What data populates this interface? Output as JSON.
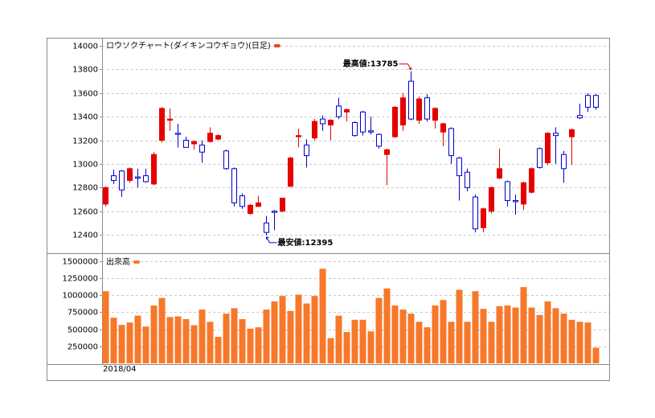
{
  "chart_data": [
    {
      "type": "candlestick",
      "series": [
        {
          "name": "ロウソクチャート(ダイキンコウギョウ)(日足)",
          "color": "#f0441a",
          "up_color": "#0000cc",
          "down_color": "#e60000",
          "open": [
            12800,
            12860,
            12780,
            12960,
            12880,
            12850,
            13080,
            13470,
            13380,
            13250,
            13140,
            13190,
            13100,
            13260,
            13240,
            12960,
            12670,
            12640,
            12650,
            12670,
            12420,
            12590,
            12710,
            13050,
            13240,
            13070,
            13360,
            13340,
            13370,
            13400,
            13460,
            13240,
            13270,
            13270,
            13150,
            13120,
            13480,
            13560,
            13380,
            13550,
            13380,
            13470,
            13340,
            13070,
            12900,
            12800,
            12450,
            12620,
            12800,
            12960,
            12690,
            12680,
            12840,
            12960,
            12970,
            13260,
            13240,
            12960,
            13290,
            13390,
            13480,
            13480
          ],
          "high": [
            12810,
            12950,
            12950,
            12970,
            12960,
            12960,
            13100,
            13480,
            13470,
            13340,
            13230,
            13200,
            13200,
            13310,
            13250,
            13120,
            12970,
            12750,
            12660,
            12730,
            12560,
            12610,
            12710,
            13060,
            13300,
            13210,
            13380,
            13410,
            13380,
            13560,
            13470,
            13360,
            13450,
            13400,
            13260,
            13130,
            13490,
            13600,
            13785,
            13570,
            13590,
            13480,
            13350,
            13310,
            13060,
            12960,
            12740,
            12630,
            12810,
            13130,
            12860,
            12740,
            12850,
            12970,
            13140,
            13270,
            13310,
            13110,
            13300,
            13510,
            13600,
            13590
          ],
          "low": [
            12640,
            12830,
            12720,
            12840,
            12800,
            12840,
            12820,
            13180,
            13280,
            13140,
            13140,
            13120,
            13010,
            13180,
            13200,
            12950,
            12640,
            12620,
            12570,
            12640,
            12395,
            12440,
            12590,
            12810,
            13140,
            12970,
            13200,
            13280,
            13200,
            13380,
            13360,
            13230,
            13240,
            13250,
            13130,
            12820,
            13220,
            13280,
            13370,
            13340,
            13360,
            13300,
            13150,
            13000,
            12690,
            12770,
            12420,
            12420,
            12580,
            12870,
            12640,
            12570,
            12610,
            12750,
            12960,
            12990,
            13000,
            12840,
            12990,
            13380,
            13440,
            13460
          ],
          "close": [
            12660,
            12900,
            12940,
            12860,
            12890,
            12900,
            12830,
            13200,
            13370,
            13260,
            13200,
            13170,
            13160,
            13190,
            13210,
            13110,
            12960,
            12730,
            12580,
            12640,
            12500,
            12600,
            12600,
            12810,
            13230,
            13160,
            13220,
            13380,
            13330,
            13490,
            13440,
            13350,
            13440,
            13280,
            13250,
            13080,
            13230,
            13330,
            13700,
            13370,
            13560,
            13370,
            13270,
            13300,
            13050,
            12930,
            12720,
            12460,
            12600,
            12880,
            12850,
            12690,
            12660,
            12760,
            13130,
            13010,
            13260,
            13080,
            13230,
            13410,
            13580,
            13580
          ]
        }
      ],
      "ylim": [
        12244,
        14068
      ],
      "yticks": [
        12400,
        12600,
        12800,
        13000,
        13200,
        13400,
        13600,
        13800,
        14000
      ],
      "grid": true,
      "annotations": [
        {
          "text": "最高値:13785",
          "value": 13785,
          "color": "#cc0000"
        },
        {
          "text": "最安値:12395",
          "value": 12395,
          "color": "#0000cc"
        }
      ]
    },
    {
      "type": "bar",
      "categories": [
        "2018/04",
        null,
        null,
        null,
        null,
        null,
        null,
        null,
        null,
        null,
        null,
        null,
        null,
        null,
        null,
        null,
        null,
        null,
        null,
        null,
        null,
        null,
        null,
        null,
        null,
        null,
        null,
        null,
        null,
        null,
        null,
        null,
        null,
        null,
        null,
        null,
        null,
        null,
        null,
        null,
        null,
        null,
        null,
        null,
        null,
        null,
        null,
        null,
        null,
        null,
        null,
        null,
        null,
        null,
        null,
        null,
        null,
        null,
        null,
        null,
        null,
        null
      ],
      "series": [
        {
          "name": "出来高",
          "color": "#f7782a",
          "values": [
            1060000,
            670000,
            565000,
            600000,
            700000,
            540000,
            850000,
            960000,
            680000,
            690000,
            650000,
            560000,
            790000,
            610000,
            390000,
            730000,
            810000,
            650000,
            510000,
            530000,
            790000,
            910000,
            990000,
            770000,
            1010000,
            880000,
            990000,
            1390000,
            370000,
            700000,
            460000,
            640000,
            640000,
            470000,
            960000,
            1100000,
            850000,
            790000,
            730000,
            610000,
            530000,
            850000,
            930000,
            610000,
            1080000,
            610000,
            1060000,
            800000,
            610000,
            840000,
            850000,
            820000,
            1120000,
            820000,
            710000,
            910000,
            810000,
            730000,
            640000,
            610000,
            600000,
            230000
          ]
        }
      ],
      "ylim": [
        0,
        1606000
      ],
      "yticks": [
        250000,
        500000,
        750000,
        1000000,
        1250000,
        1500000
      ],
      "grid": true
    }
  ]
}
